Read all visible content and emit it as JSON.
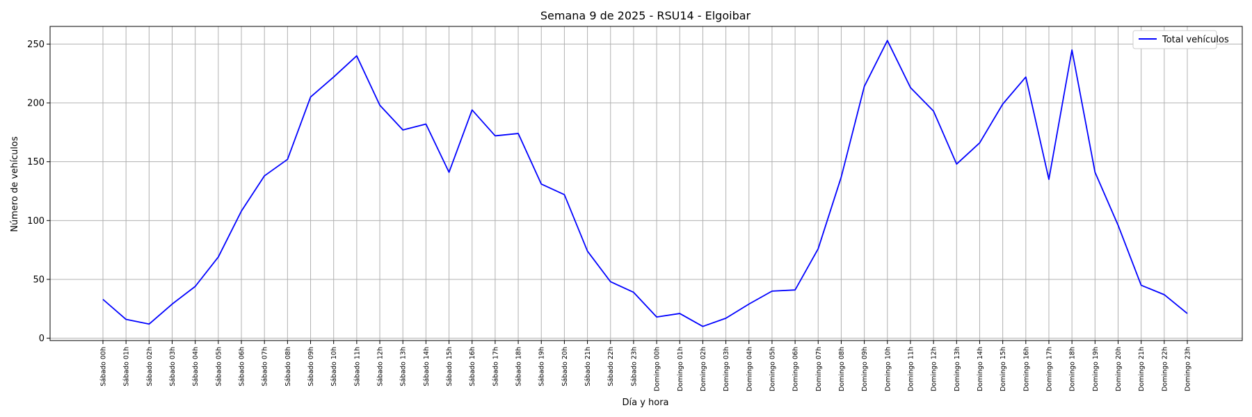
{
  "chart_data": {
    "type": "line",
    "title": "Semana 9 de 2025 - RSU14 - Elgoibar",
    "xlabel": "Día y hora",
    "ylabel": "Número de vehículos",
    "ylim": [
      -2,
      265
    ],
    "yticks": [
      0,
      50,
      100,
      150,
      200,
      250
    ],
    "grid": true,
    "legend_position": "top-right",
    "categories": [
      "Sábado 00h",
      "Sábado 01h",
      "Sábado 02h",
      "Sábado 03h",
      "Sábado 04h",
      "Sábado 05h",
      "Sábado 06h",
      "Sábado 07h",
      "Sábado 08h",
      "Sábado 09h",
      "Sábado 10h",
      "Sábado 11h",
      "Sábado 12h",
      "Sábado 13h",
      "Sábado 14h",
      "Sábado 15h",
      "Sábado 16h",
      "Sábado 17h",
      "Sábado 18h",
      "Sábado 19h",
      "Sábado 20h",
      "Sábado 21h",
      "Sábado 22h",
      "Sábado 23h",
      "Domingo 00h",
      "Domingo 01h",
      "Domingo 02h",
      "Domingo 03h",
      "Domingo 04h",
      "Domingo 05h",
      "Domingo 06h",
      "Domingo 07h",
      "Domingo 08h",
      "Domingo 09h",
      "Domingo 10h",
      "Domingo 11h",
      "Domingo 12h",
      "Domingo 13h",
      "Domingo 14h",
      "Domingo 15h",
      "Domingo 16h",
      "Domingo 17h",
      "Domingo 18h",
      "Domingo 19h",
      "Domingo 20h",
      "Domingo 21h",
      "Domingo 22h",
      "Domingo 23h"
    ],
    "series": [
      {
        "name": "Total vehículos",
        "color": "#0000ff",
        "values": [
          33,
          16,
          12,
          29,
          44,
          69,
          108,
          138,
          152,
          205,
          222,
          240,
          198,
          177,
          182,
          141,
          194,
          172,
          174,
          131,
          122,
          74,
          48,
          39,
          18,
          21,
          10,
          17,
          29,
          40,
          41,
          76,
          137,
          214,
          253,
          213,
          193,
          148,
          166,
          199,
          222,
          135,
          245,
          141,
          96,
          45,
          37,
          21
        ]
      }
    ]
  }
}
